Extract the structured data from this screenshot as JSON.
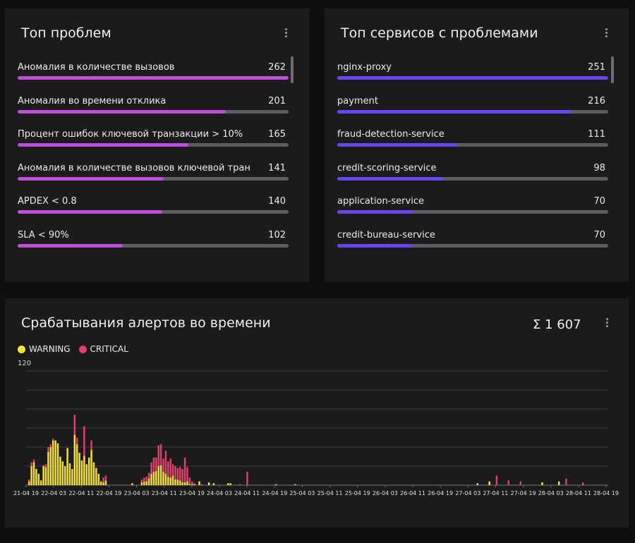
{
  "problems": {
    "title": "Топ проблем",
    "bar_color": "#bf4fd8",
    "items": [
      {
        "label": "Аномалия в количестве вызовов",
        "value": 262,
        "fraction": 1.0
      },
      {
        "label": "Аномалия во времени отклика",
        "value": 201,
        "fraction": 0.767
      },
      {
        "label": "Процент ошибок ключевой транзакции > 10%",
        "value": 165,
        "fraction": 0.63
      },
      {
        "label": "Аномалия в количестве вызовов ключевой транз...",
        "value": 141,
        "fraction": 0.538
      },
      {
        "label": "APDEX < 0.8",
        "value": 140,
        "fraction": 0.534
      },
      {
        "label": "SLA < 90%",
        "value": 102,
        "fraction": 0.389
      }
    ]
  },
  "services": {
    "title": "Топ сервисов с проблемами",
    "bar_color": "#6a45f0",
    "items": [
      {
        "label": "nginx-proxy",
        "value": 251,
        "fraction": 1.0
      },
      {
        "label": "payment",
        "value": 216,
        "fraction": 0.861
      },
      {
        "label": "fraud-detection-service",
        "value": 111,
        "fraction": 0.442
      },
      {
        "label": "credit-scoring-service",
        "value": 98,
        "fraction": 0.39
      },
      {
        "label": "application-service",
        "value": 70,
        "fraction": 0.279
      },
      {
        "label": "credit-bureau-service",
        "value": 70,
        "fraction": 0.279
      }
    ]
  },
  "alerts": {
    "title": "Срабатывания алертов во времени",
    "total": "Σ 1 607",
    "legend": [
      {
        "name": "WARNING",
        "color": "#f5e23c"
      },
      {
        "name": "CRITICAL",
        "color": "#e0406a"
      }
    ]
  },
  "chart_data": {
    "type": "bar",
    "stacked": true,
    "y_tick_label": "120",
    "ylim": [
      0,
      120
    ],
    "grid": true,
    "legend_position": "top-left",
    "x_tick_labels": [
      "21-04 19",
      "22-04 03",
      "22-04 11",
      "22-04 19",
      "23-04 03",
      "23-04 11",
      "23-04 19",
      "24-04 03",
      "24-04 11",
      "24-04 19",
      "25-04 03",
      "25-04 11",
      "25-04 19",
      "26-04 03",
      "26-04 11",
      "26-04 19",
      "27-04 03",
      "27-04 11",
      "27-04 19",
      "28-04 03",
      "28-04 11",
      "28-04 19"
    ],
    "series": [
      {
        "name": "WARNING",
        "values": [
          4,
          20,
          24,
          17,
          12,
          5,
          20,
          19,
          35,
          40,
          47,
          47,
          44,
          30,
          25,
          20,
          39,
          23,
          17,
          53,
          43,
          34,
          26,
          31,
          22,
          29,
          37,
          24,
          18,
          12,
          4,
          3,
          5,
          0,
          0,
          0,
          0,
          0,
          0,
          0,
          0,
          0,
          0,
          2,
          0,
          0,
          0,
          3,
          4,
          4,
          7,
          12,
          14,
          15,
          20,
          21,
          14,
          12,
          9,
          8,
          10,
          6,
          6,
          5,
          3,
          3,
          4,
          1,
          1,
          1,
          0,
          4,
          0,
          0,
          0,
          3,
          0,
          2,
          0,
          0,
          0,
          0,
          0,
          2,
          2,
          0,
          0,
          0,
          0,
          0,
          0,
          0,
          0,
          0,
          0,
          0,
          0,
          0,
          0,
          0,
          0,
          0,
          0,
          1,
          0,
          0,
          0,
          0,
          0,
          0,
          0,
          1,
          0,
          0,
          0,
          0,
          0,
          0,
          0,
          0,
          0,
          0,
          0,
          0,
          0,
          0,
          0,
          0,
          0,
          0,
          0,
          0,
          0,
          0,
          0,
          0,
          0,
          0,
          0,
          0,
          0,
          0,
          0,
          0,
          0,
          0,
          0,
          0,
          0,
          0,
          0,
          0,
          0,
          0,
          0,
          0,
          0,
          0,
          0,
          0,
          0,
          0,
          0,
          0,
          0,
          0,
          0,
          0,
          0,
          0,
          0,
          0,
          0,
          0,
          0,
          0,
          0,
          0,
          0,
          0,
          0,
          0,
          0,
          0,
          0,
          0,
          0,
          2,
          0,
          0,
          0,
          0,
          4,
          0,
          0,
          0,
          0,
          0,
          0,
          0,
          0,
          0,
          0,
          0,
          0,
          0,
          0,
          0,
          0,
          0,
          0,
          0,
          0,
          0,
          3,
          0,
          0,
          0,
          0,
          0,
          0,
          4,
          0,
          0,
          0,
          0,
          0,
          0,
          0,
          0,
          0,
          0,
          0,
          0,
          0,
          0,
          0,
          0,
          0,
          0,
          0
        ]
      },
      {
        "name": "CRITICAL",
        "values": [
          2,
          4,
          3,
          0,
          0,
          0,
          1,
          3,
          5,
          3,
          2,
          0,
          0,
          0,
          0,
          0,
          0,
          0,
          0,
          21,
          7,
          0,
          0,
          31,
          0,
          0,
          10,
          0,
          0,
          0,
          0,
          5,
          5,
          0,
          0,
          0,
          0,
          0,
          0,
          0,
          0,
          0,
          0,
          0,
          0,
          0,
          0,
          3,
          4,
          5,
          6,
          12,
          15,
          14,
          22,
          22,
          14,
          24,
          16,
          20,
          12,
          14,
          12,
          14,
          14,
          26,
          15,
          7,
          3,
          1,
          0,
          0,
          1,
          0,
          0,
          0,
          0,
          0,
          0,
          0,
          0,
          0,
          0,
          0,
          0,
          0,
          0,
          0,
          1,
          0,
          0,
          14,
          0,
          0,
          0,
          0,
          0,
          0,
          0,
          0,
          0,
          0,
          0,
          0,
          0,
          0,
          0,
          0,
          0,
          0,
          0,
          0,
          0,
          0,
          0,
          0,
          0,
          0,
          0,
          0,
          0,
          0,
          0,
          0,
          0,
          0,
          0,
          0,
          0,
          0,
          0,
          0,
          0,
          0,
          0,
          0,
          0,
          0,
          0,
          0,
          0,
          0,
          0,
          0,
          0,
          0,
          0,
          0,
          0,
          0,
          0,
          0,
          0,
          0,
          0,
          0,
          0,
          0,
          0,
          0,
          0,
          0,
          0,
          0,
          0,
          0,
          0,
          0,
          0,
          0,
          0,
          0,
          0,
          0,
          0,
          0,
          0,
          0,
          0,
          0,
          0,
          0,
          0,
          0,
          0,
          0,
          0,
          0,
          0,
          0,
          0,
          0,
          0,
          0,
          0,
          10,
          0,
          0,
          0,
          0,
          5,
          0,
          0,
          0,
          0,
          4,
          0,
          0,
          0,
          0,
          0,
          0,
          0,
          0,
          0,
          0,
          0,
          0,
          0,
          0,
          0,
          0,
          0,
          0,
          7,
          0,
          0,
          0,
          0,
          0,
          0,
          3,
          0,
          0,
          0,
          0,
          0,
          0,
          0,
          0,
          0,
          0,
          0,
          0,
          0,
          0,
          0,
          0,
          0,
          0,
          0
        ]
      }
    ]
  }
}
